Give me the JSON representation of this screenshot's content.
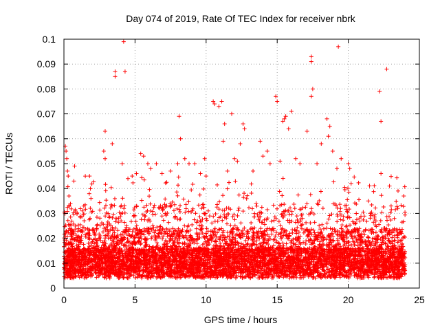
{
  "chart_data": {
    "type": "scatter",
    "title": "Day 074 of 2019, Rate Of TEC Index for receiver nbrk",
    "xlabel": "GPS time / hours",
    "ylabel": "ROTI / TECUs",
    "xlim": [
      0,
      25
    ],
    "ylim": [
      0,
      0.1
    ],
    "xticks": [
      "0",
      "5",
      "10",
      "15",
      "20",
      "25"
    ],
    "yticks": [
      "0",
      "0.01",
      "0.02",
      "0.03",
      "0.04",
      "0.05",
      "0.06",
      "0.07",
      "0.08",
      "0.09",
      "0.1"
    ],
    "grid": true,
    "marker": "plus",
    "color": "#ff0000",
    "series": [
      {
        "values": [
          [
            0.1,
            0.057
          ],
          [
            0.15,
            0.055
          ],
          [
            0.2,
            0.052
          ],
          [
            0.25,
            0.047
          ],
          [
            0.3,
            0.045
          ],
          [
            0.35,
            0.037
          ],
          [
            0.7,
            0.043
          ],
          [
            0.75,
            0.049
          ],
          [
            1.8,
            0.045
          ],
          [
            1.9,
            0.036
          ],
          [
            2.9,
            0.063
          ],
          [
            2.8,
            0.055
          ],
          [
            2.9,
            0.052
          ],
          [
            3.4,
            0.058
          ],
          [
            3.6,
            0.087
          ],
          [
            3.6,
            0.085
          ],
          [
            4.1,
            0.05
          ],
          [
            4.2,
            0.099
          ],
          [
            4.3,
            0.087
          ],
          [
            4.5,
            0.044
          ],
          [
            4.8,
            0.045
          ],
          [
            5.1,
            0.046
          ],
          [
            5.4,
            0.054
          ],
          [
            5.6,
            0.053
          ],
          [
            5.9,
            0.05
          ],
          [
            6.1,
            0.048
          ],
          [
            6.5,
            0.05
          ],
          [
            6.9,
            0.046
          ],
          [
            7.5,
            0.047
          ],
          [
            8.0,
            0.05
          ],
          [
            8.1,
            0.069
          ],
          [
            8.2,
            0.06
          ],
          [
            8.5,
            0.052
          ],
          [
            8.8,
            0.05
          ],
          [
            9.2,
            0.05
          ],
          [
            9.6,
            0.046
          ],
          [
            9.9,
            0.052
          ],
          [
            10.0,
            0.045
          ],
          [
            10.5,
            0.075
          ],
          [
            10.6,
            0.074
          ],
          [
            10.9,
            0.073
          ],
          [
            11.1,
            0.075
          ],
          [
            11.2,
            0.059
          ],
          [
            11.3,
            0.066
          ],
          [
            11.5,
            0.047
          ],
          [
            11.8,
            0.07
          ],
          [
            12.0,
            0.052
          ],
          [
            12.2,
            0.051
          ],
          [
            12.6,
            0.066
          ],
          [
            12.7,
            0.064
          ],
          [
            12.4,
            0.058
          ],
          [
            13.3,
            0.047
          ],
          [
            13.8,
            0.059
          ],
          [
            14.0,
            0.053
          ],
          [
            14.3,
            0.055
          ],
          [
            14.5,
            0.05
          ],
          [
            14.9,
            0.077
          ],
          [
            15.0,
            0.075
          ],
          [
            15.2,
            0.051
          ],
          [
            15.4,
            0.067
          ],
          [
            15.5,
            0.068
          ],
          [
            15.6,
            0.069
          ],
          [
            15.8,
            0.064
          ],
          [
            16.0,
            0.071
          ],
          [
            16.3,
            0.052
          ],
          [
            16.6,
            0.05
          ],
          [
            17.1,
            0.063
          ],
          [
            17.4,
            0.093
          ],
          [
            17.4,
            0.091
          ],
          [
            17.5,
            0.08
          ],
          [
            17.4,
            0.077
          ],
          [
            17.8,
            0.05
          ],
          [
            18.1,
            0.058
          ],
          [
            18.5,
            0.068
          ],
          [
            18.7,
            0.065
          ],
          [
            18.6,
            0.061
          ],
          [
            18.9,
            0.055
          ],
          [
            19.3,
            0.097
          ],
          [
            19.2,
            0.048
          ],
          [
            19.5,
            0.052
          ],
          [
            20.0,
            0.05
          ],
          [
            20.1,
            0.048
          ],
          [
            20.2,
            0.042
          ],
          [
            22.2,
            0.079
          ],
          [
            22.3,
            0.067
          ],
          [
            22.3,
            0.046
          ],
          [
            22.7,
            0.088
          ],
          [
            22.9,
            0.041
          ],
          [
            23.5,
            0.039
          ],
          [
            23.9,
            0.037
          ]
        ]
      }
    ]
  }
}
